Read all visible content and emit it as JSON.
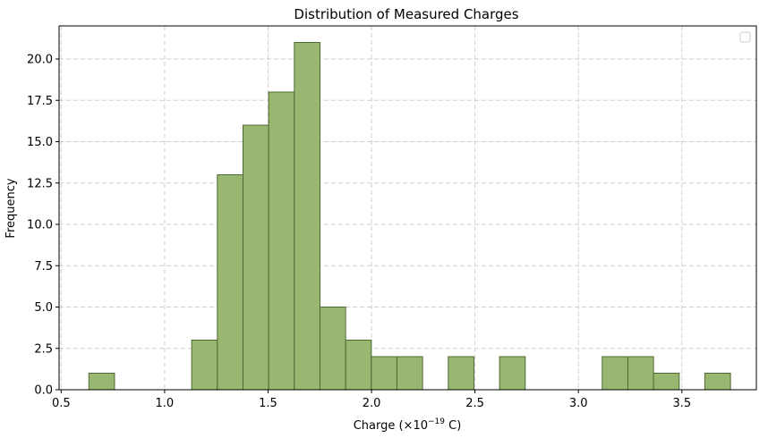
{
  "chart_data": {
    "type": "bar",
    "title": "Distribution of Measured Charges",
    "xlabel": "Charge (×10",
    "xlabel_exponent": "−19",
    "xlabel_suffix": " C)",
    "ylabel": "Frequency",
    "xlim": [
      0.49,
      3.86
    ],
    "ylim": [
      0,
      22
    ],
    "x_ticks": [
      0.5,
      1.0,
      1.5,
      2.0,
      2.5,
      3.0,
      3.5
    ],
    "x_tick_labels": [
      "0.5",
      "1.0",
      "1.5",
      "2.0",
      "2.5",
      "3.0",
      "3.5"
    ],
    "y_ticks": [
      0,
      2.5,
      5,
      7.5,
      10,
      12.5,
      15,
      17.5,
      20
    ],
    "y_tick_labels": [
      "0.0",
      "2.5",
      "5.0",
      "7.5",
      "10.0",
      "12.5",
      "15.0",
      "17.5",
      "20.0"
    ],
    "grid": true,
    "legend": "top-right (empty)",
    "bar_color": "#9ab772",
    "bar_edge_color": "#4e6a33",
    "bins": [
      {
        "start": 0.634,
        "end": 0.758,
        "value": 1
      },
      {
        "start": 1.131,
        "end": 1.255,
        "value": 3
      },
      {
        "start": 1.255,
        "end": 1.379,
        "value": 13
      },
      {
        "start": 1.379,
        "end": 1.503,
        "value": 16
      },
      {
        "start": 1.503,
        "end": 1.627,
        "value": 18
      },
      {
        "start": 1.627,
        "end": 1.751,
        "value": 21
      },
      {
        "start": 1.751,
        "end": 1.875,
        "value": 5
      },
      {
        "start": 1.875,
        "end": 1.999,
        "value": 3
      },
      {
        "start": 1.999,
        "end": 2.123,
        "value": 2
      },
      {
        "start": 2.123,
        "end": 2.247,
        "value": 2
      },
      {
        "start": 2.371,
        "end": 2.495,
        "value": 2
      },
      {
        "start": 2.619,
        "end": 2.743,
        "value": 2
      },
      {
        "start": 3.115,
        "end": 3.239,
        "value": 2
      },
      {
        "start": 3.239,
        "end": 3.363,
        "value": 2
      },
      {
        "start": 3.363,
        "end": 3.487,
        "value": 1
      },
      {
        "start": 3.611,
        "end": 3.735,
        "value": 1
      }
    ]
  }
}
